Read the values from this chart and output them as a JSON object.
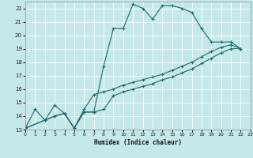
{
  "xlabel": "Humidex (Indice chaleur)",
  "xlim": [
    0,
    23
  ],
  "ylim": [
    13,
    22.5
  ],
  "yticks": [
    13,
    14,
    15,
    16,
    17,
    18,
    19,
    20,
    21,
    22
  ],
  "xticks": [
    0,
    1,
    2,
    3,
    4,
    5,
    6,
    7,
    8,
    9,
    10,
    11,
    12,
    13,
    14,
    15,
    16,
    17,
    18,
    19,
    20,
    21,
    22,
    23
  ],
  "bg_color": "#c5e8e8",
  "grid_color": "#ffffff",
  "line_color": "#1a6b6b",
  "line1_x": [
    0,
    1,
    2,
    3,
    4,
    5,
    6,
    7,
    8,
    9,
    10,
    11,
    12,
    13,
    14,
    15,
    16,
    17,
    18,
    19,
    20,
    21,
    22
  ],
  "line1_y": [
    13.1,
    14.5,
    13.7,
    14.8,
    14.2,
    13.1,
    14.3,
    14.3,
    17.7,
    20.5,
    20.5,
    22.3,
    22.0,
    21.2,
    22.2,
    22.2,
    22.0,
    21.7,
    20.5,
    19.5,
    19.5,
    19.5,
    19.0
  ],
  "line2_x": [
    0,
    2,
    3,
    4,
    5,
    6,
    7,
    8,
    9,
    10,
    11,
    12,
    13,
    14,
    15,
    16,
    17,
    18,
    19,
    20,
    21,
    22
  ],
  "line2_y": [
    13.1,
    13.7,
    14.0,
    14.2,
    13.1,
    14.3,
    14.3,
    14.5,
    15.5,
    15.8,
    16.0,
    16.2,
    16.4,
    16.7,
    16.9,
    17.2,
    17.5,
    17.9,
    18.3,
    18.7,
    19.0,
    19.0
  ],
  "line3_x": [
    0,
    2,
    3,
    4,
    5,
    6,
    7,
    8,
    9,
    10,
    11,
    12,
    13,
    14,
    15,
    16,
    17,
    18,
    19,
    20,
    21,
    22
  ],
  "line3_y": [
    13.1,
    13.7,
    14.0,
    14.2,
    13.1,
    14.5,
    15.6,
    15.8,
    16.0,
    16.3,
    16.5,
    16.7,
    16.9,
    17.1,
    17.4,
    17.7,
    18.0,
    18.4,
    18.8,
    19.1,
    19.3,
    19.0
  ]
}
